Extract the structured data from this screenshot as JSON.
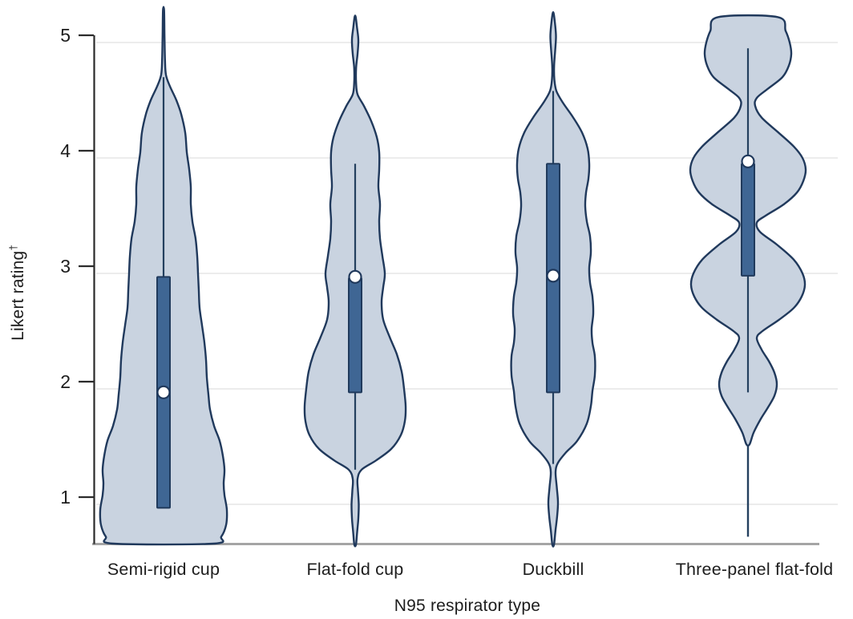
{
  "figure": {
    "y_axis_label": "Likert rating",
    "y_axis_label_superscript": "†",
    "x_axis_label": "N95 respirator type"
  },
  "chart_data": {
    "type": "violin",
    "title": "",
    "xlabel": "N95 respirator type",
    "ylabel": "Likert rating†",
    "ylabel_text": "Likert rating",
    "ylabel_superscript": "†",
    "y_ticks": [
      1,
      2,
      3,
      4,
      5
    ],
    "ylim": [
      0.6,
      5.3
    ],
    "grid": true,
    "legend": "none",
    "categories": [
      "Semi-rigid cup",
      "Flat-fold cup",
      "Duckbill",
      "Three-panel flat-fold"
    ],
    "series": [
      {
        "name": "Semi-rigid cup",
        "slug": "semi-rigid-cup",
        "stats": {
          "q1": 0.97,
          "median": 1.97,
          "q3": 2.97,
          "whisker_low": 0.97,
          "whisker_high": 4.7,
          "median_dot": 1.97
        },
        "flat_top": false,
        "flat_bottom": true,
        "profile": [
          [
            5.28,
            0.7
          ],
          [
            5.05,
            1.2
          ],
          [
            4.85,
            1.8
          ],
          [
            4.72,
            3
          ],
          [
            4.62,
            8
          ],
          [
            4.5,
            16
          ],
          [
            4.38,
            22
          ],
          [
            4.22,
            27
          ],
          [
            4.05,
            29
          ],
          [
            3.9,
            32
          ],
          [
            3.75,
            34
          ],
          [
            3.6,
            34
          ],
          [
            3.45,
            36
          ],
          [
            3.3,
            40
          ],
          [
            3.15,
            42
          ],
          [
            3.0,
            43
          ],
          [
            2.85,
            44
          ],
          [
            2.7,
            45
          ],
          [
            2.55,
            48
          ],
          [
            2.4,
            51
          ],
          [
            2.25,
            53
          ],
          [
            2.1,
            54
          ],
          [
            1.95,
            56
          ],
          [
            1.82,
            58
          ],
          [
            1.68,
            63
          ],
          [
            1.55,
            70
          ],
          [
            1.42,
            74
          ],
          [
            1.3,
            76
          ],
          [
            1.18,
            75
          ],
          [
            1.08,
            76
          ],
          [
            0.95,
            79
          ],
          [
            0.82,
            78
          ],
          [
            0.72,
            72
          ],
          [
            0.66,
            62
          ]
        ],
        "tail": null
      },
      {
        "name": "Flat-fold cup",
        "slug": "flat-fold-cup",
        "stats": {
          "q1": 1.97,
          "median": 2.96,
          "q3": 2.96,
          "whisker_low": 1.3,
          "whisker_high": 3.95,
          "median_dot": 2.97
        },
        "flat_top": false,
        "flat_bottom": false,
        "profile": [
          [
            5.22,
            0.7
          ],
          [
            5.12,
            2.5
          ],
          [
            5.02,
            4
          ],
          [
            4.9,
            3
          ],
          [
            4.78,
            1.2
          ],
          [
            4.65,
            1.2
          ],
          [
            4.55,
            3
          ],
          [
            4.45,
            11
          ],
          [
            4.32,
            20
          ],
          [
            4.18,
            27
          ],
          [
            4.05,
            30
          ],
          [
            3.9,
            30
          ],
          [
            3.75,
            29
          ],
          [
            3.6,
            31
          ],
          [
            3.45,
            30
          ],
          [
            3.3,
            31
          ],
          [
            3.15,
            34
          ],
          [
            3.0,
            37
          ],
          [
            2.88,
            35
          ],
          [
            2.75,
            33
          ],
          [
            2.6,
            35
          ],
          [
            2.45,
            43
          ],
          [
            2.3,
            52
          ],
          [
            2.15,
            58
          ],
          [
            2.0,
            61
          ],
          [
            1.85,
            63
          ],
          [
            1.72,
            62
          ],
          [
            1.6,
            57
          ],
          [
            1.48,
            45
          ],
          [
            1.38,
            26
          ],
          [
            1.3,
            8
          ],
          [
            1.22,
            3
          ],
          [
            1.12,
            3.5
          ],
          [
            1.0,
            4.5
          ],
          [
            0.88,
            4
          ],
          [
            0.76,
            2.5
          ],
          [
            0.65,
            1
          ]
        ],
        "tail": null
      },
      {
        "name": "Duckbill",
        "slug": "duckbill",
        "stats": {
          "q1": 1.97,
          "median": 2.98,
          "q3": 3.95,
          "whisker_low": 1.35,
          "whisker_high": 4.58,
          "median_dot": 2.98
        },
        "flat_top": false,
        "flat_bottom": false,
        "profile": [
          [
            5.25,
            0.7
          ],
          [
            5.15,
            2.5
          ],
          [
            5.05,
            3.5
          ],
          [
            4.93,
            2.5
          ],
          [
            4.8,
            1.2
          ],
          [
            4.68,
            1.5
          ],
          [
            4.58,
            4
          ],
          [
            4.48,
            12
          ],
          [
            4.35,
            25
          ],
          [
            4.22,
            36
          ],
          [
            4.08,
            43
          ],
          [
            3.95,
            45
          ],
          [
            3.82,
            44
          ],
          [
            3.7,
            41
          ],
          [
            3.58,
            40
          ],
          [
            3.45,
            42
          ],
          [
            3.32,
            46
          ],
          [
            3.18,
            47
          ],
          [
            3.05,
            45
          ],
          [
            2.92,
            46
          ],
          [
            2.8,
            49
          ],
          [
            2.65,
            50
          ],
          [
            2.52,
            48
          ],
          [
            2.4,
            49
          ],
          [
            2.28,
            52
          ],
          [
            2.12,
            52
          ],
          [
            1.98,
            49
          ],
          [
            1.85,
            47
          ],
          [
            1.7,
            42
          ],
          [
            1.55,
            30
          ],
          [
            1.45,
            16
          ],
          [
            1.36,
            6
          ],
          [
            1.28,
            3
          ],
          [
            1.15,
            4.5
          ],
          [
            1.02,
            6
          ],
          [
            0.9,
            5
          ],
          [
            0.78,
            3
          ],
          [
            0.65,
            1
          ]
        ],
        "tail": null
      },
      {
        "name": "Three-panel flat-fold",
        "slug": "three-panel-flat-fold",
        "stats": {
          "q1": 2.98,
          "median": 3.96,
          "q3": 3.95,
          "whisker_low": 1.97,
          "whisker_high": 4.95,
          "median_dot": 3.97
        },
        "flat_top": true,
        "flat_bottom": false,
        "profile": [
          [
            5.22,
            37
          ],
          [
            5.1,
            47
          ],
          [
            5.0,
            52
          ],
          [
            4.9,
            54
          ],
          [
            4.8,
            51
          ],
          [
            4.7,
            43
          ],
          [
            4.6,
            25
          ],
          [
            4.52,
            11
          ],
          [
            4.45,
            9
          ],
          [
            4.35,
            17
          ],
          [
            4.22,
            38
          ],
          [
            4.1,
            57
          ],
          [
            4.0,
            68
          ],
          [
            3.9,
            72
          ],
          [
            3.8,
            69
          ],
          [
            3.7,
            61
          ],
          [
            3.6,
            45
          ],
          [
            3.5,
            22
          ],
          [
            3.44,
            11
          ],
          [
            3.36,
            15
          ],
          [
            3.25,
            36
          ],
          [
            3.12,
            57
          ],
          [
            3.0,
            68
          ],
          [
            2.9,
            71
          ],
          [
            2.8,
            67
          ],
          [
            2.7,
            57
          ],
          [
            2.6,
            39
          ],
          [
            2.5,
            18
          ],
          [
            2.44,
            11
          ],
          [
            2.34,
            17
          ],
          [
            2.24,
            26
          ],
          [
            2.14,
            33
          ],
          [
            2.04,
            36
          ],
          [
            1.94,
            33
          ],
          [
            1.84,
            25
          ],
          [
            1.74,
            16
          ],
          [
            1.62,
            7
          ],
          [
            1.52,
            2
          ]
        ],
        "tail": [
          1.5,
          0.72
        ]
      }
    ],
    "colors": {
      "violin_fill": "#c9d3e0",
      "violin_stroke": "#20395c",
      "box_fill": "#3f6694",
      "box_stroke": "#203a5c",
      "whisker": "#24405f",
      "median_dot_fill": "#ffffff",
      "median_dot_stroke": "#20395c",
      "gridline": "#ececec",
      "axis_line": "#2b2b2b",
      "baseline": "#a5a5a5",
      "text": "#1d1d1d"
    }
  }
}
